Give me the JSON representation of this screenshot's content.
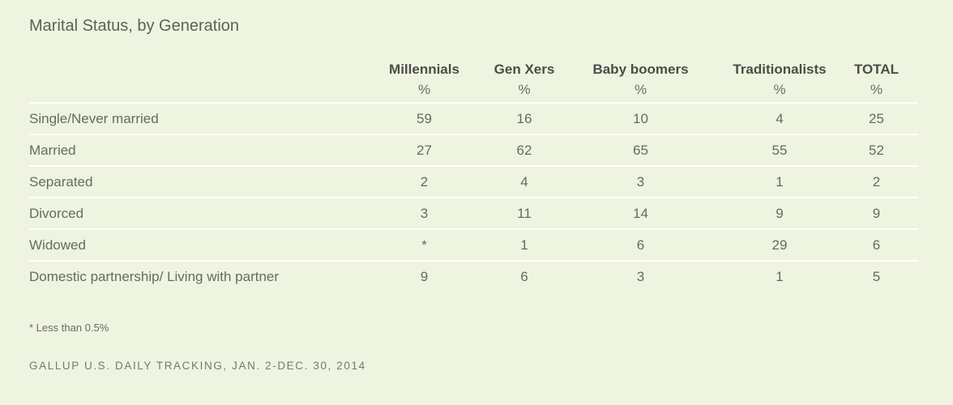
{
  "title": "Marital Status, by Generation",
  "columns": [
    {
      "label": "Millennials",
      "unit": "%"
    },
    {
      "label": "Gen Xers",
      "unit": "%"
    },
    {
      "label": "Baby boomers",
      "unit": "%"
    },
    {
      "label": "Traditionalists",
      "unit": "%"
    },
    {
      "label": "TOTAL",
      "unit": "%"
    }
  ],
  "rows": [
    {
      "label": "Single/Never married",
      "values": [
        "59",
        "16",
        "10",
        "4",
        "25"
      ]
    },
    {
      "label": "Married",
      "values": [
        "27",
        "62",
        "65",
        "55",
        "52"
      ]
    },
    {
      "label": "Separated",
      "values": [
        "2",
        "4",
        "3",
        "1",
        "2"
      ]
    },
    {
      "label": "Divorced",
      "values": [
        "3",
        "11",
        "14",
        "9",
        "9"
      ]
    },
    {
      "label": "Widowed",
      "values": [
        "*",
        "1",
        "6",
        "29",
        "6"
      ]
    },
    {
      "label": "Domestic partnership/ Living with partner",
      "values": [
        "9",
        "6",
        "3",
        "1",
        "5"
      ]
    }
  ],
  "footnote": "* Less than 0.5%",
  "source": "GALLUP U.S. DAILY TRACKING, JAN. 2-DEC. 30, 2014",
  "colors": {
    "background": "#eef4e0",
    "divider": "#ffffff",
    "text": "#5a5f56"
  },
  "chart_data": {
    "type": "table",
    "title": "Marital Status, by Generation",
    "categories": [
      "Single/Never married",
      "Married",
      "Separated",
      "Divorced",
      "Widowed",
      "Domestic partnership/ Living with partner"
    ],
    "series": [
      {
        "name": "Millennials",
        "values": [
          59,
          27,
          2,
          3,
          "*",
          9
        ]
      },
      {
        "name": "Gen Xers",
        "values": [
          16,
          62,
          4,
          11,
          1,
          6
        ]
      },
      {
        "name": "Baby boomers",
        "values": [
          10,
          65,
          3,
          14,
          6,
          3
        ]
      },
      {
        "name": "Traditionalists",
        "values": [
          4,
          55,
          1,
          9,
          29,
          1
        ]
      },
      {
        "name": "TOTAL",
        "values": [
          25,
          52,
          2,
          9,
          6,
          5
        ]
      }
    ],
    "unit": "%",
    "notes": [
      "* Less than 0.5%"
    ],
    "source": "GALLUP U.S. DAILY TRACKING, JAN. 2-DEC. 30, 2014"
  }
}
